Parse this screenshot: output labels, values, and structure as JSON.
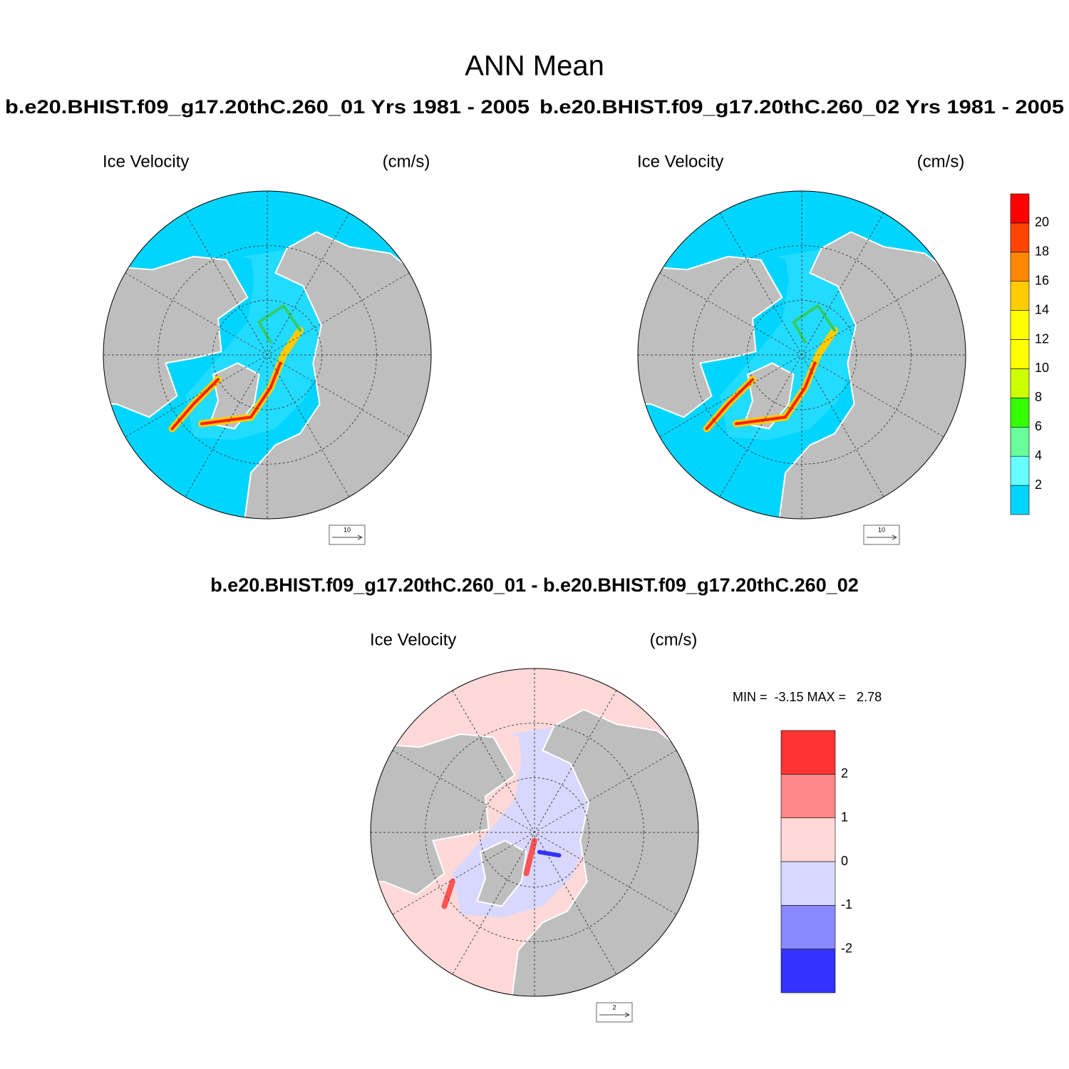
{
  "title": "ANN Mean",
  "panels": [
    {
      "case": "b.e20.BHIST.f09_g17.20thC.260_01  Yrs 1981 - 2005",
      "left_label": "Ice Velocity",
      "right_label": "(cm/s)",
      "ref_vector": "10"
    },
    {
      "case": "b.e20.BHIST.f09_g17.20thC.260_02  Yrs 1981 - 2005",
      "left_label": "Ice Velocity",
      "right_label": "(cm/s)",
      "ref_vector": "10"
    },
    {
      "case": "b.e20.BHIST.f09_g17.20thC.260_01 - b.e20.BHIST.f09_g17.20thC.260_02",
      "left_label": "Ice Velocity",
      "right_label": "(cm/s)",
      "ref_vector": "2",
      "stats": "MIN =  -3.15 MAX =   2.78"
    }
  ],
  "colorbars": [
    {
      "labels": [
        2,
        4,
        6,
        8,
        10,
        12,
        14,
        16,
        18,
        20
      ],
      "colors": [
        "#00d5ff",
        "#66ffff",
        "#66ff99",
        "#33ff00",
        "#ccff00",
        "#ffff00",
        "#ffff00",
        "#ffcc00",
        "#ff8800",
        "#ff4400",
        "#ff0000"
      ]
    },
    {
      "labels": [
        -2,
        -1,
        0,
        1,
        2
      ],
      "colors": [
        "#3333ff",
        "#8888ff",
        "#d8d8ff",
        "#ffd8d8",
        "#ff8888",
        "#ff3333"
      ]
    }
  ]
}
